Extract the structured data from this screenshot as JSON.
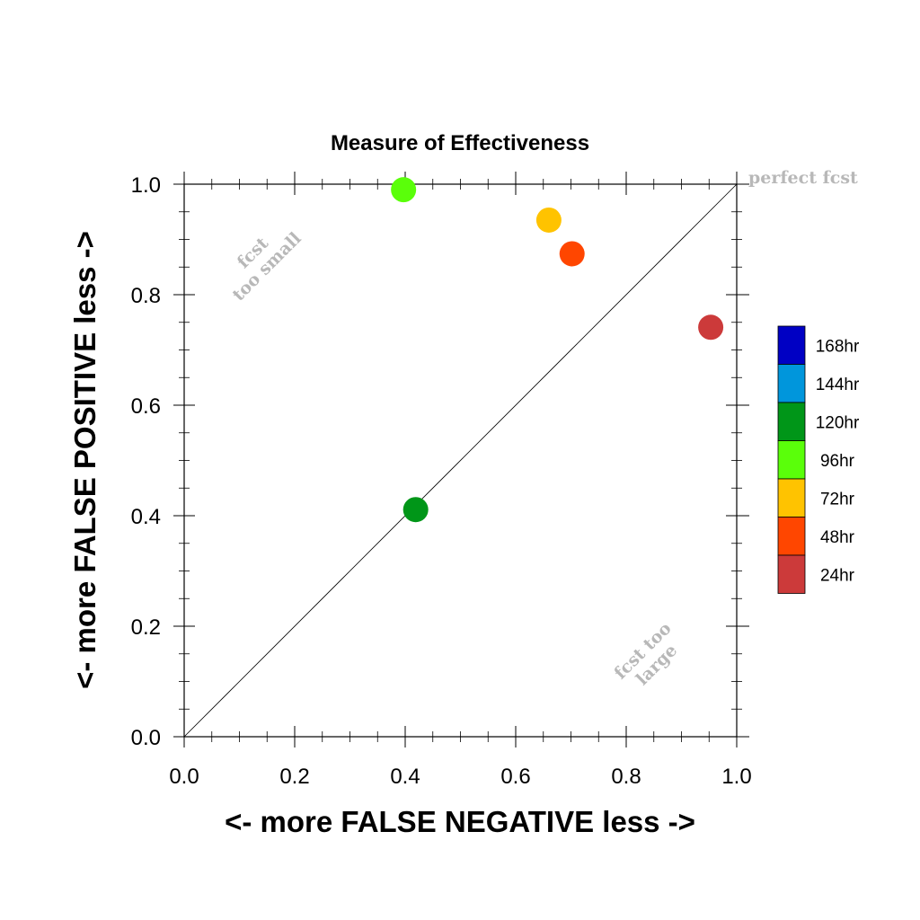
{
  "chart_data": {
    "type": "scatter",
    "title": "Measure of Effectiveness",
    "xlabel": "<- more   FALSE NEGATIVE   less ->",
    "ylabel": "<- more   FALSE POSITIVE   less ->",
    "xlim": [
      0.0,
      1.0
    ],
    "ylim": [
      0.0,
      1.0
    ],
    "x_ticks": [
      "0.0",
      "0.2",
      "0.4",
      "0.6",
      "0.8",
      "1.0"
    ],
    "y_ticks": [
      "0.0",
      "0.2",
      "0.4",
      "0.6",
      "0.8",
      "1.0"
    ],
    "grid": false,
    "reference_line": "diagonal y = x",
    "legend_placement": "right",
    "legend": [
      {
        "label": "168hr",
        "color": "#0000c4"
      },
      {
        "label": "144hr",
        "color": "#0096dc"
      },
      {
        "label": "120hr",
        "color": "#009618"
      },
      {
        "label": "96hr",
        "color": "#5aff0a"
      },
      {
        "label": "72hr",
        "color": "#ffc300"
      },
      {
        "label": "48hr",
        "color": "#ff4600"
      },
      {
        "label": "24hr",
        "color": "#cc3a3a"
      }
    ],
    "points": [
      {
        "series": "96hr",
        "x": 0.397,
        "y": 0.99,
        "color": "#5aff0a"
      },
      {
        "series": "72hr",
        "x": 0.66,
        "y": 0.935,
        "color": "#ffc300"
      },
      {
        "series": "48hr",
        "x": 0.702,
        "y": 0.874,
        "color": "#ff4600"
      },
      {
        "series": "24hr",
        "x": 0.953,
        "y": 0.741,
        "color": "#cc3a3a"
      },
      {
        "series": "120hr",
        "x": 0.419,
        "y": 0.411,
        "color": "#009618"
      }
    ],
    "annotations": {
      "perfect": "perfect fcst",
      "too_small": [
        "fcst",
        "too small"
      ],
      "too_large": [
        "fcst too",
        "large"
      ]
    }
  }
}
